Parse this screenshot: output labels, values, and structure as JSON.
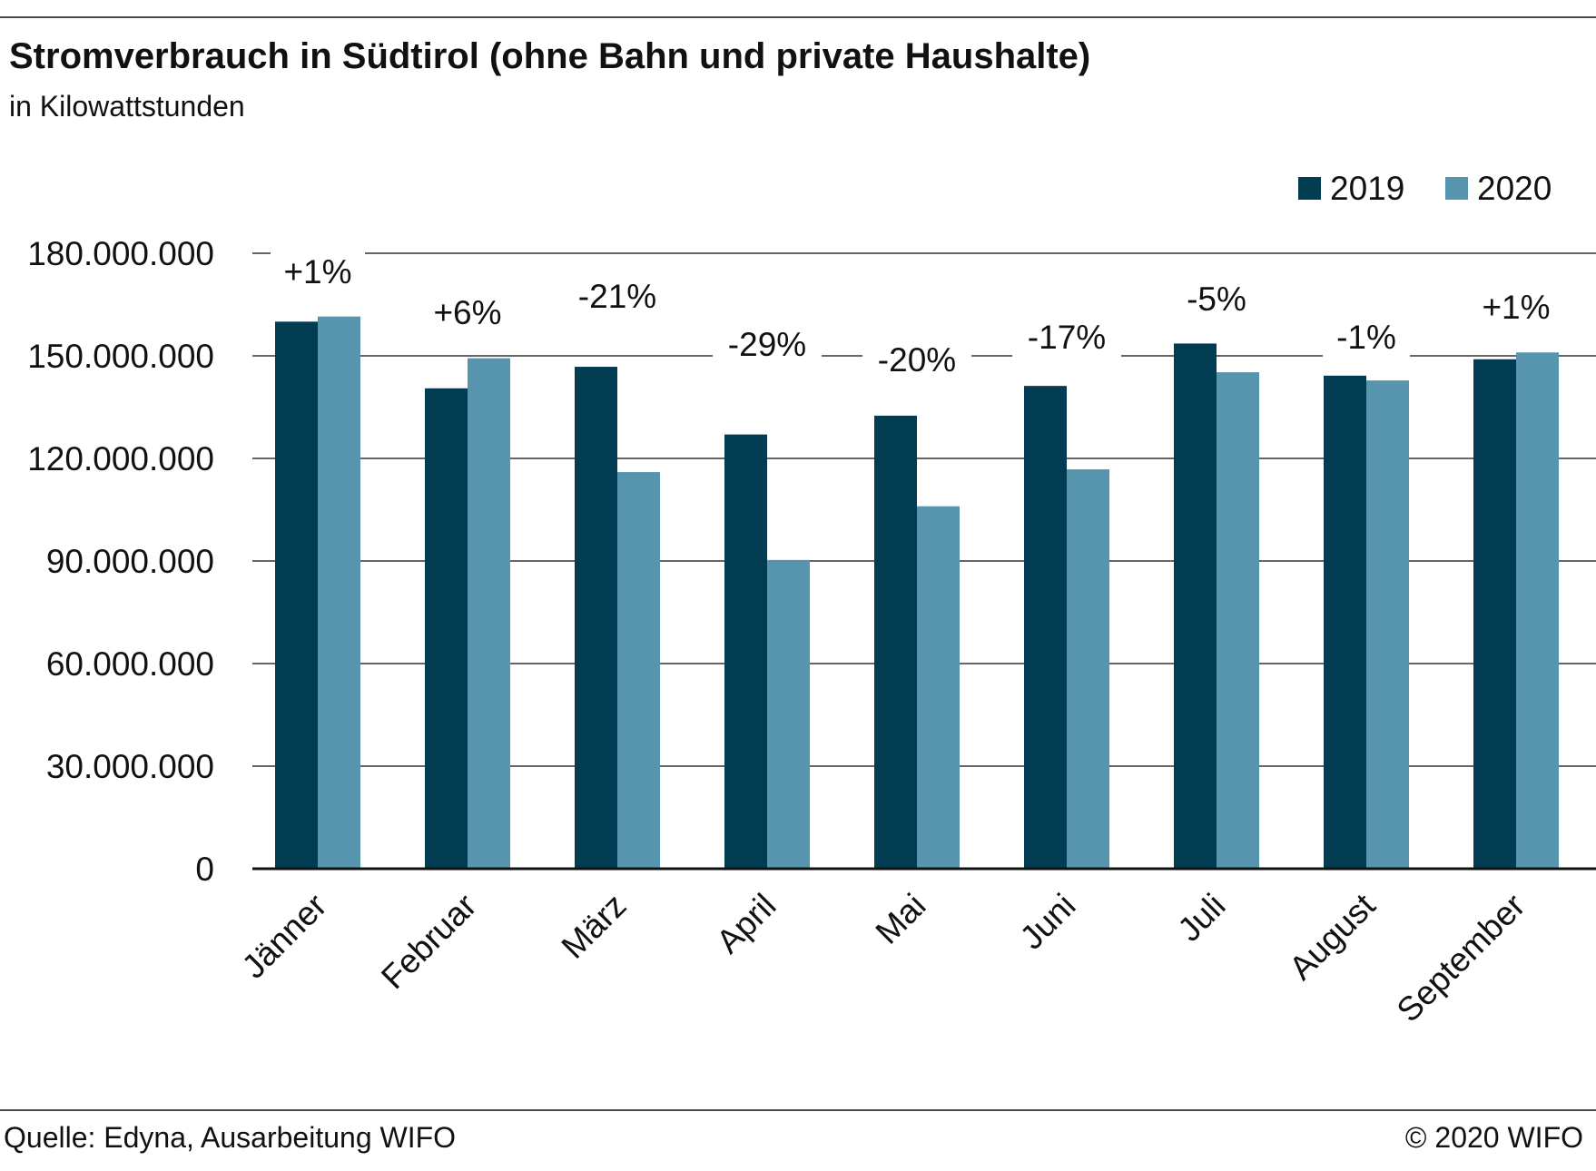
{
  "header": {
    "title": "Stromverbrauch in Südtirol (ohne Bahn und private Haushalte)",
    "subtitle": "in Kilowattstunden"
  },
  "footer": {
    "source": "Quelle: Edyna, Ausarbeitung WIFO",
    "copyright": "© 2020 WIFO"
  },
  "colors": {
    "series_2019": "#023c52",
    "series_2020": "#5795ae",
    "gridline": "#333333",
    "axis": "#111111"
  },
  "chart_data": {
    "type": "bar",
    "title": "Stromverbrauch in Südtirol (ohne Bahn und private Haushalte)",
    "subtitle": "in Kilowattstunden",
    "categories": [
      "Jänner",
      "Februar",
      "März",
      "April",
      "Mai",
      "Juni",
      "Juli",
      "August",
      "September"
    ],
    "series": [
      {
        "name": "2019",
        "values": [
          160000000,
          140500000,
          146800000,
          127000000,
          132500000,
          141200000,
          153600000,
          144200000,
          149000000
        ]
      },
      {
        "name": "2020",
        "values": [
          161500000,
          149300000,
          116000000,
          90300000,
          106000000,
          116800000,
          145200000,
          142800000,
          151000000
        ]
      }
    ],
    "change_labels": [
      "+1%",
      "+6%",
      "-21%",
      "-29%",
      "-20%",
      "-17%",
      "-5%",
      "-1%",
      "+1%"
    ],
    "ylim": [
      0,
      180000000
    ],
    "yticks": [
      0,
      30000000,
      60000000,
      90000000,
      120000000,
      150000000,
      180000000
    ],
    "ytick_labels": [
      "0",
      "30.000.000",
      "60.000.000",
      "90.000.000",
      "120.000.000",
      "150.000.000",
      "180.000.000"
    ],
    "xlabel": "",
    "ylabel": "",
    "grid": true,
    "legend_position": "top-right"
  }
}
